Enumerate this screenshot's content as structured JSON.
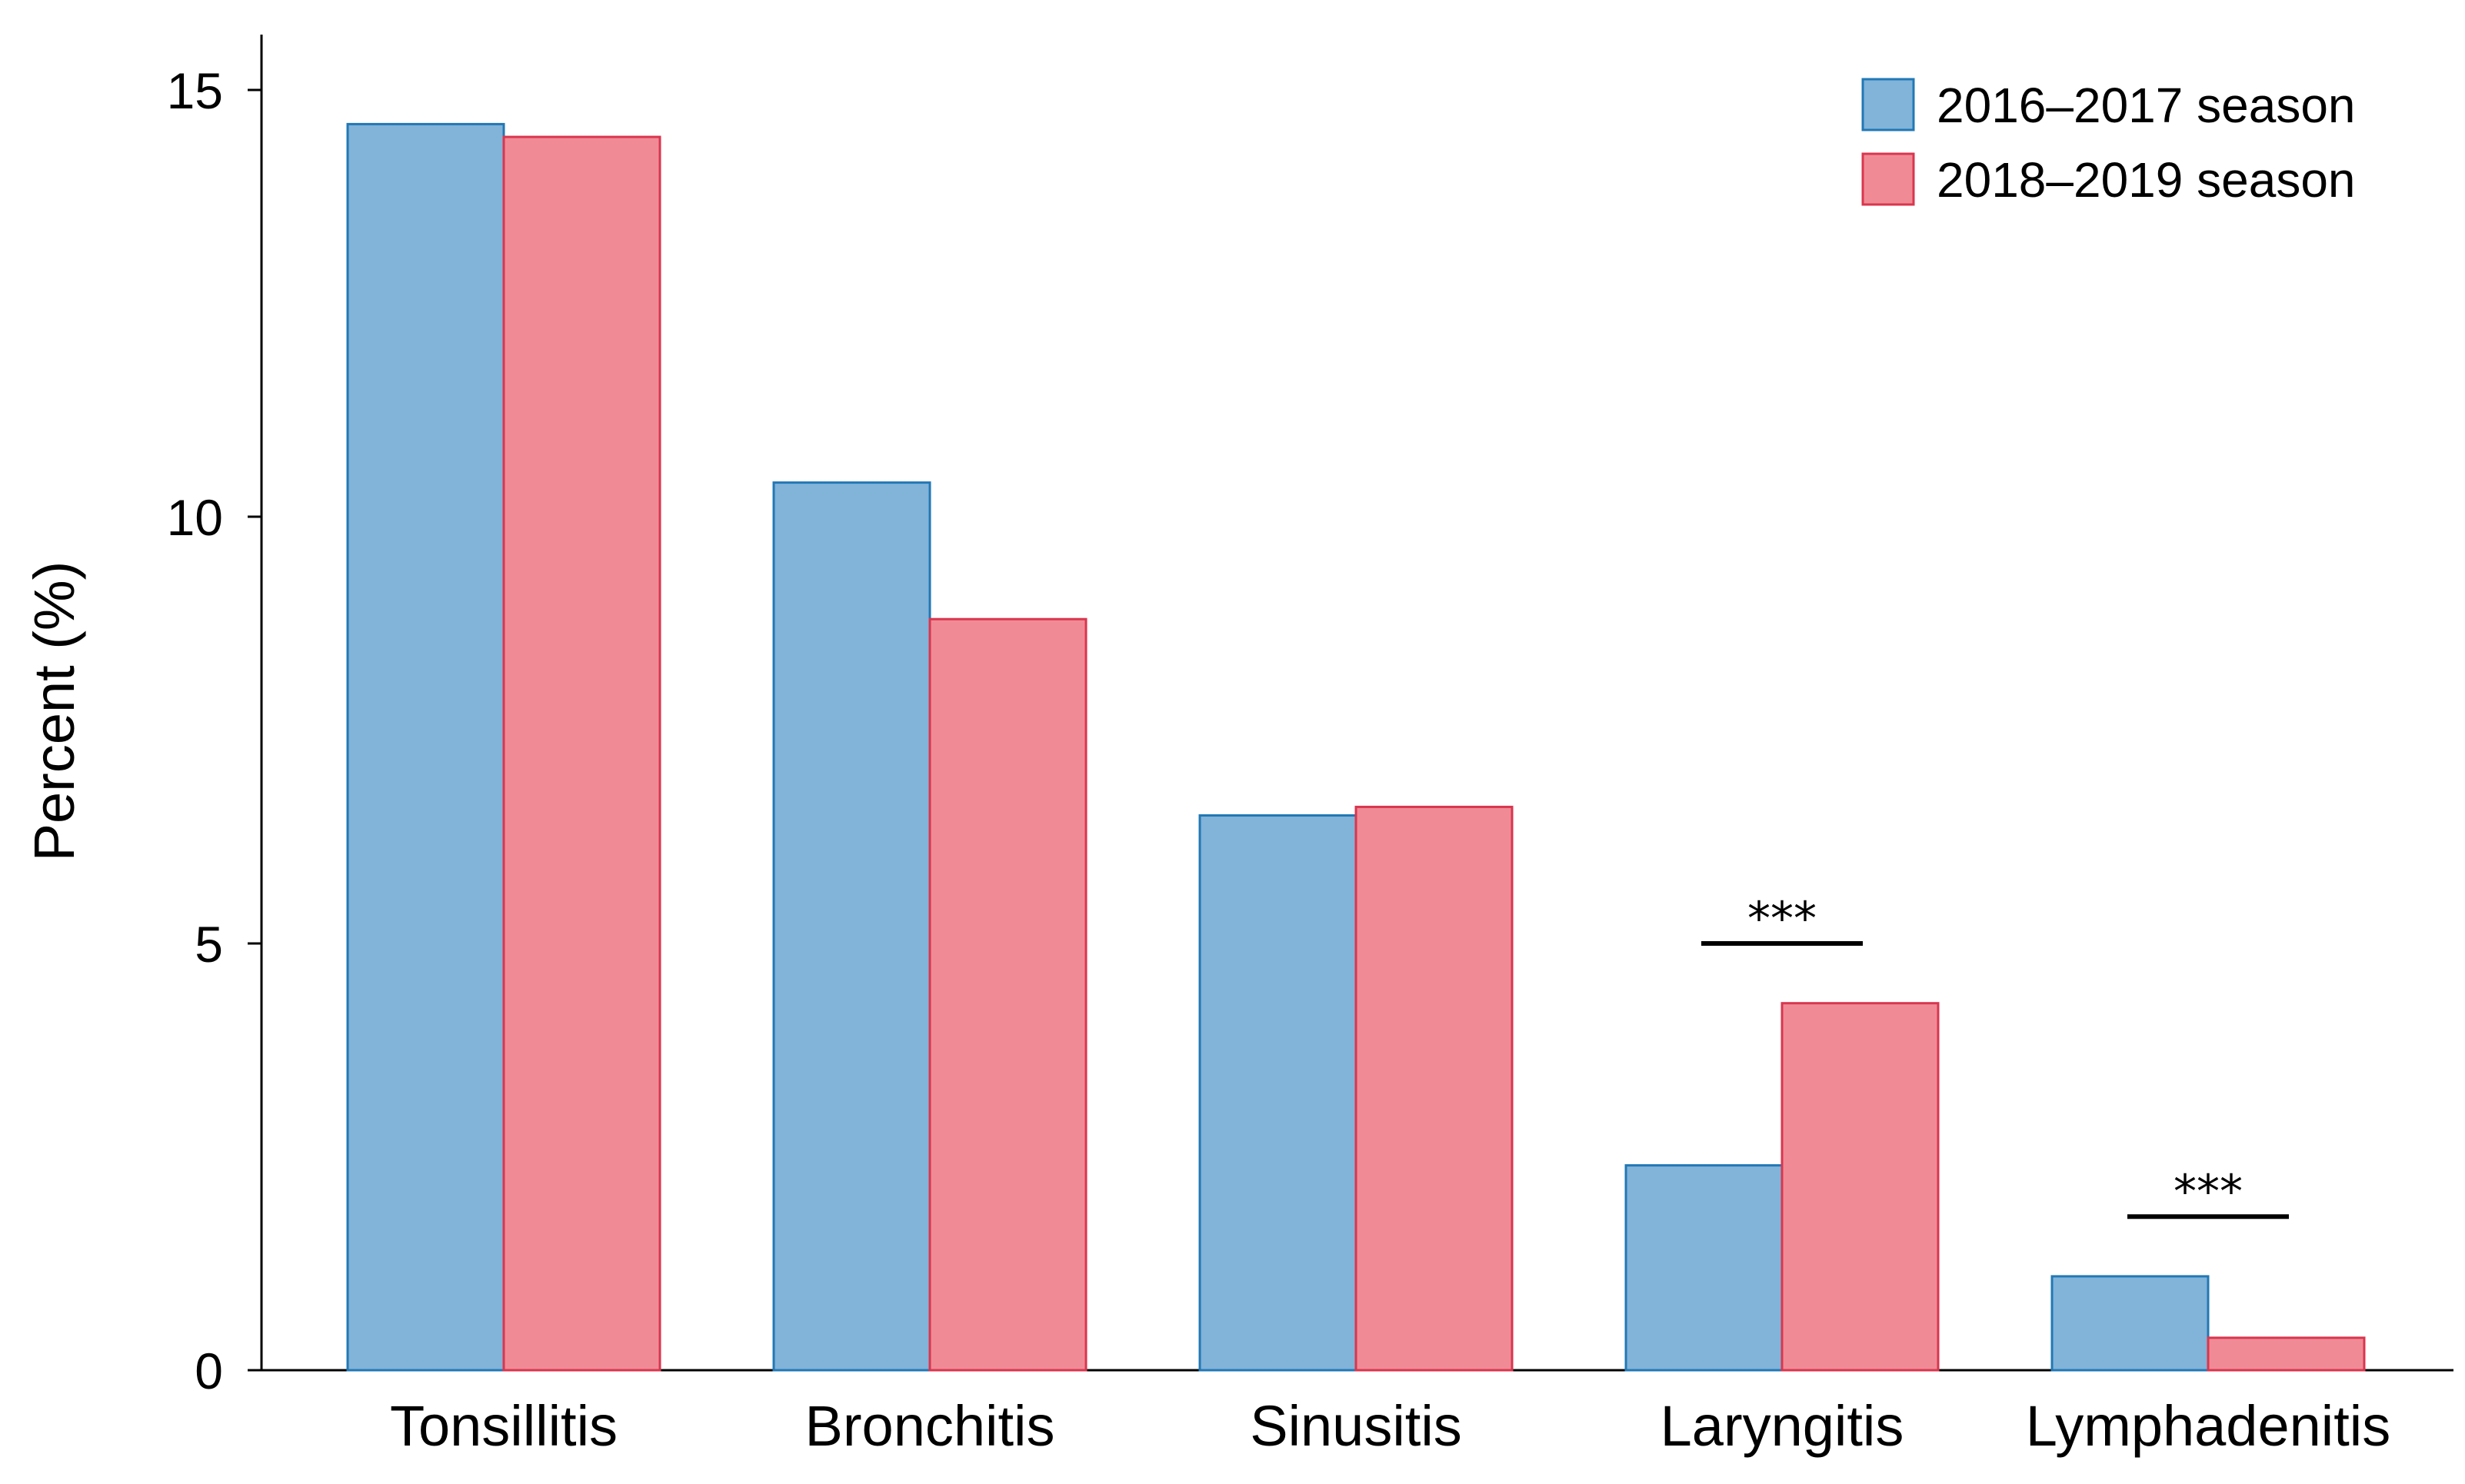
{
  "chart_data": {
    "type": "bar",
    "title": "",
    "xlabel": "",
    "ylabel": "Percent (%)",
    "ylim": [
      0,
      15.5
    ],
    "yticks": [
      0,
      5,
      10,
      15
    ],
    "grid": false,
    "legend_position": "top-right",
    "categories": [
      "Tonsillitis",
      "Bronchitis",
      "Sinusitis",
      "Laryngitis",
      "Lymphadenitis"
    ],
    "series": [
      {
        "name": "2016–2017 season",
        "fill": "#82b3d9",
        "stroke": "#2278b5",
        "values": [
          14.6,
          10.4,
          6.5,
          2.4,
          1.1
        ]
      },
      {
        "name": "2018–2019 season",
        "fill": "#f08b96",
        "stroke": "#d9364e",
        "values": [
          14.45,
          8.8,
          6.6,
          4.3,
          0.38
        ]
      }
    ],
    "annotations": [
      {
        "category": "Laryngitis",
        "text": "***",
        "y": 5.0
      },
      {
        "category": "Lymphadenitis",
        "text": "***",
        "y": 1.8
      }
    ]
  }
}
